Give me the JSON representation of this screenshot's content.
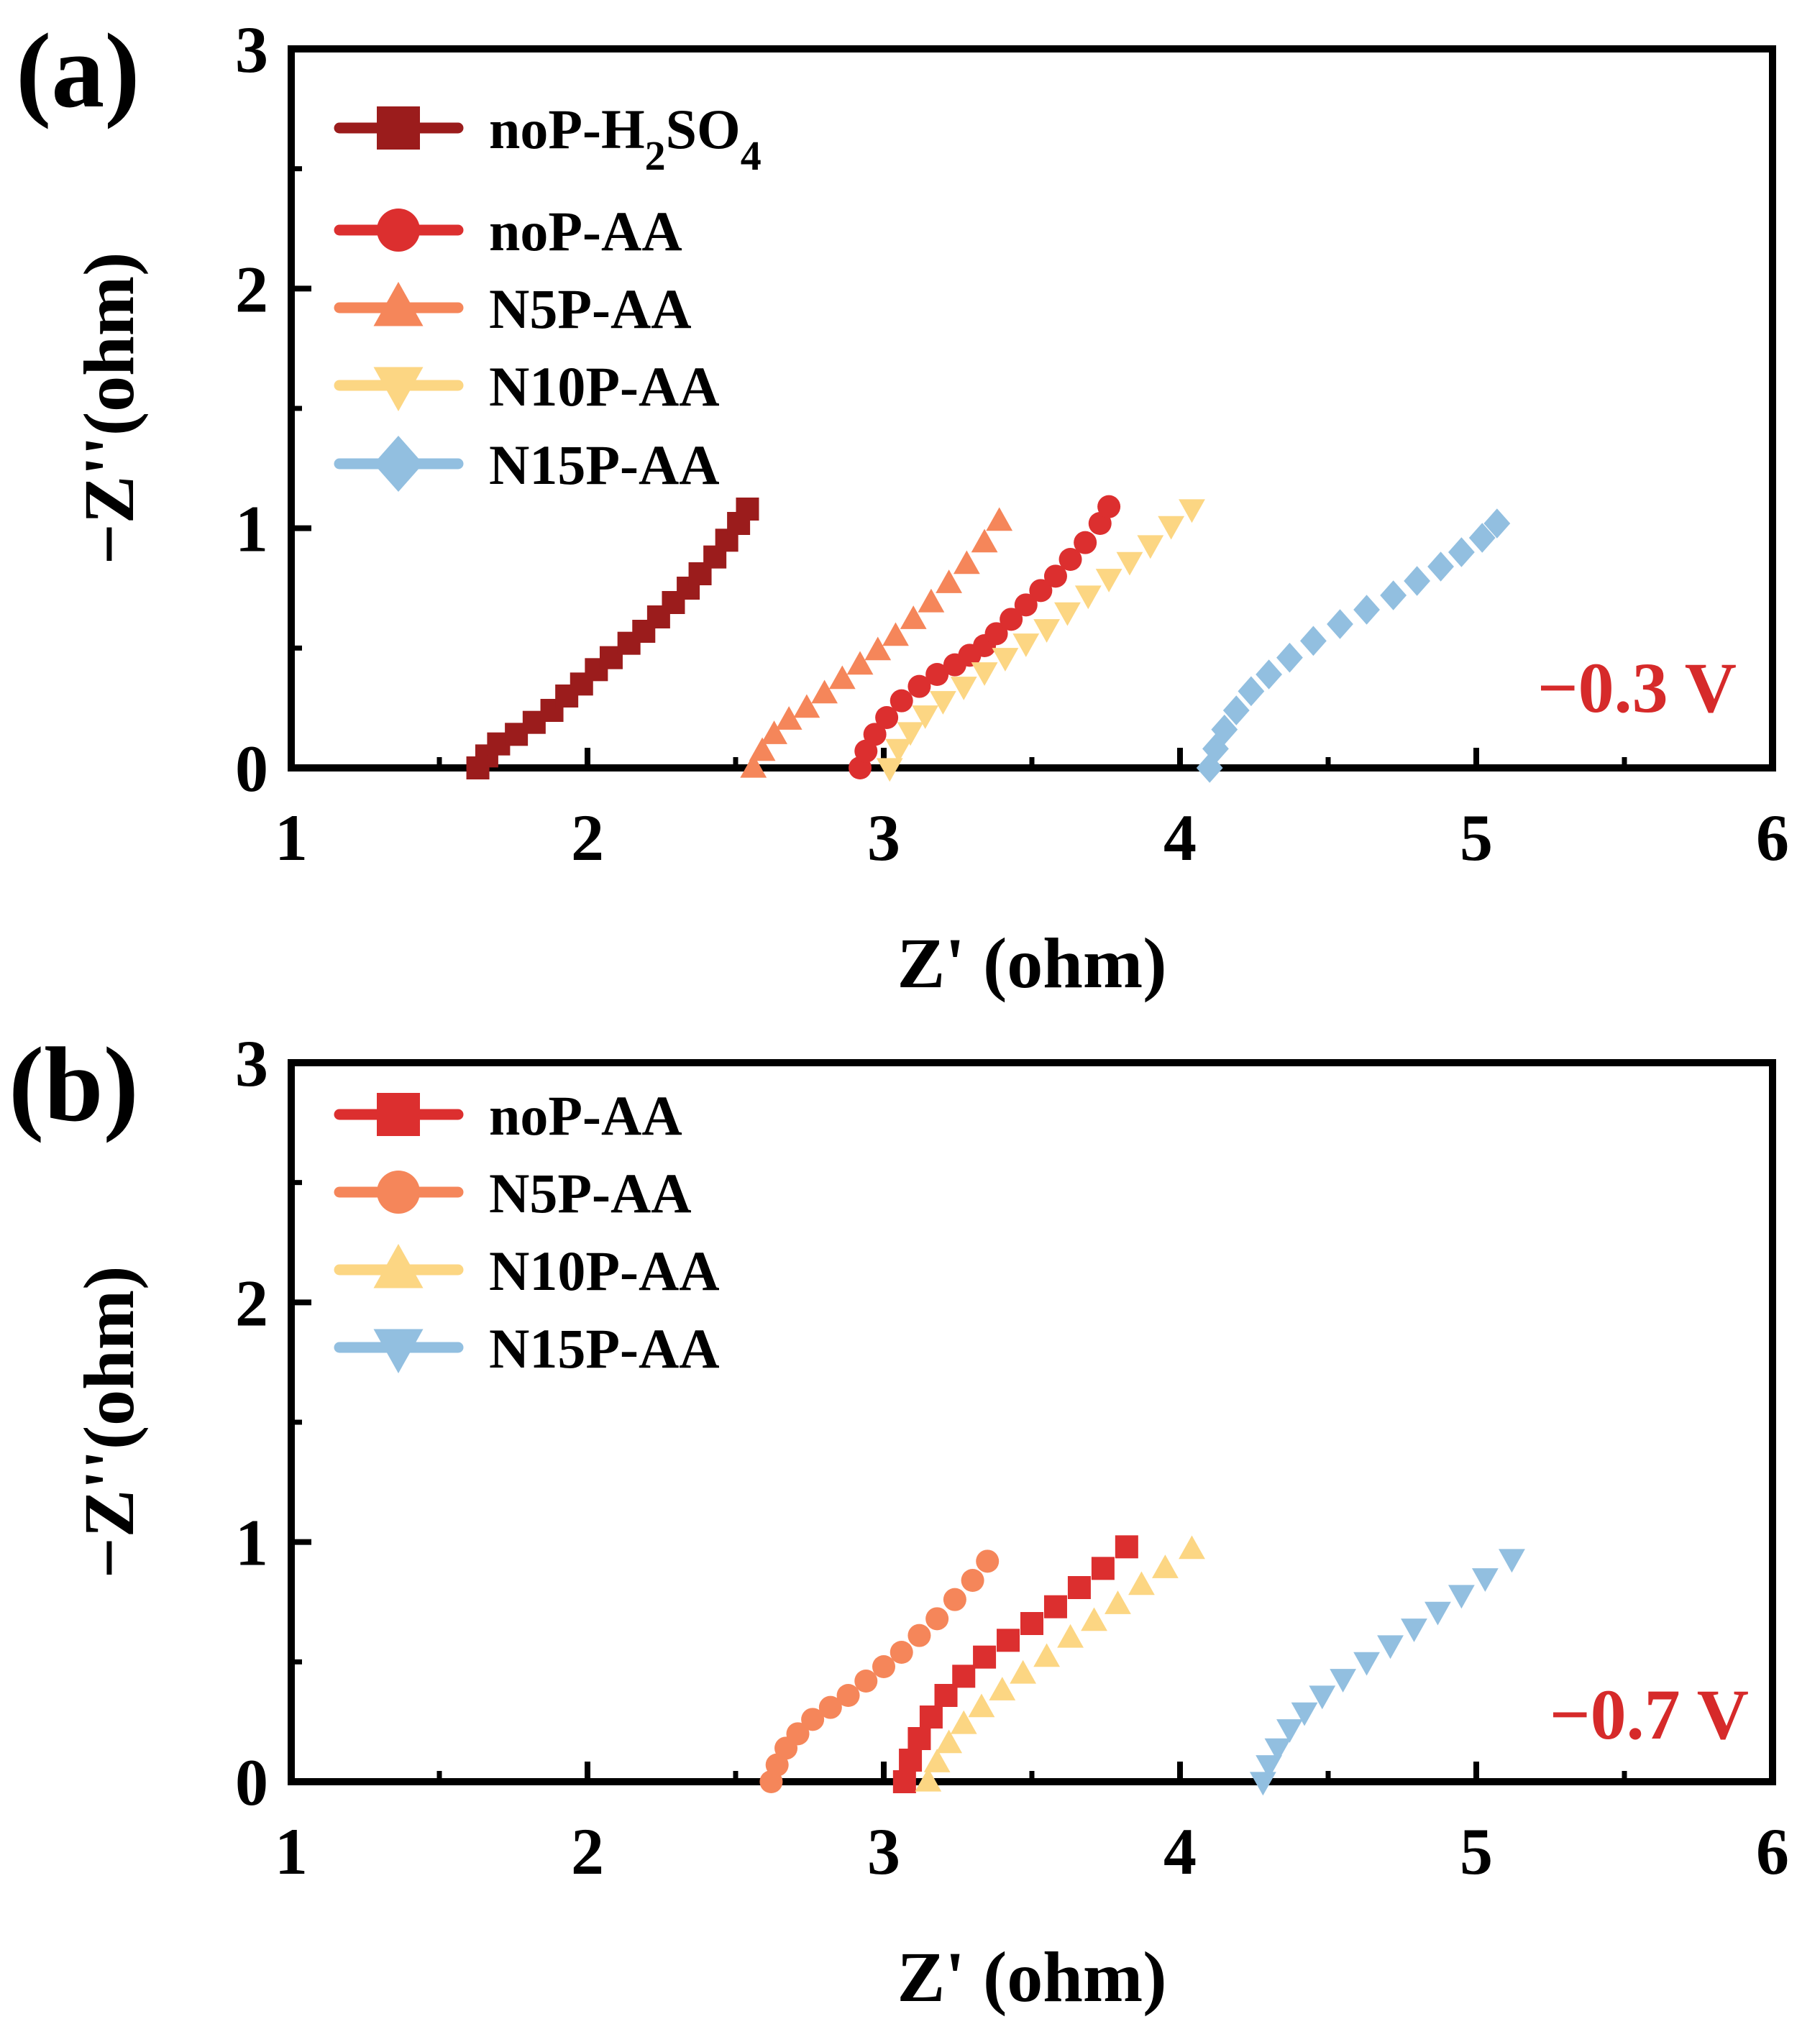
{
  "chart_data": [
    {
      "type": "scatter",
      "panel_label": "(a)",
      "xlabel": "Z' (ohm)",
      "ylabel": "−Z''(ohm)",
      "xlim": [
        1,
        6
      ],
      "ylim": [
        0,
        3
      ],
      "xticks": [
        "1",
        "2",
        "3",
        "4",
        "5",
        "6"
      ],
      "yticks": [
        "0",
        "1",
        "2",
        "3"
      ],
      "grid": false,
      "legend_position": "top-left",
      "annotation": {
        "text": "−0.3 V",
        "color": "#d62a2a"
      },
      "series": [
        {
          "name": "noP-H2SO4",
          "legend_main": "noP-H",
          "legend_sub1": "2",
          "legend_mid": "SO",
          "legend_sub2": "4",
          "color": "#9b1c1c",
          "marker": "square",
          "x": [
            1.63,
            1.66,
            1.7,
            1.76,
            1.82,
            1.88,
            1.93,
            1.98,
            2.03,
            2.08,
            2.14,
            2.19,
            2.24,
            2.29,
            2.34,
            2.38,
            2.43,
            2.47,
            2.51,
            2.54
          ],
          "y": [
            0.0,
            0.05,
            0.1,
            0.14,
            0.19,
            0.24,
            0.3,
            0.35,
            0.41,
            0.46,
            0.52,
            0.57,
            0.63,
            0.69,
            0.75,
            0.81,
            0.88,
            0.95,
            1.02,
            1.08
          ]
        },
        {
          "name": "noP-AA",
          "color": "#dc2f2f",
          "marker": "circle",
          "x": [
            2.92,
            2.94,
            2.97,
            3.01,
            3.06,
            3.12,
            3.18,
            3.24,
            3.29,
            3.34,
            3.38,
            3.43,
            3.48,
            3.53,
            3.58,
            3.63,
            3.68,
            3.73,
            3.76
          ],
          "y": [
            0.0,
            0.07,
            0.14,
            0.21,
            0.28,
            0.34,
            0.39,
            0.43,
            0.47,
            0.51,
            0.56,
            0.62,
            0.68,
            0.74,
            0.8,
            0.87,
            0.94,
            1.02,
            1.09
          ]
        },
        {
          "name": "N5P-AA",
          "color": "#f5865a",
          "marker": "triangle-up",
          "x": [
            2.56,
            2.59,
            2.63,
            2.68,
            2.74,
            2.8,
            2.86,
            2.92,
            2.98,
            3.04,
            3.1,
            3.16,
            3.22,
            3.28,
            3.34,
            3.39
          ],
          "y": [
            0.0,
            0.07,
            0.14,
            0.2,
            0.25,
            0.31,
            0.37,
            0.43,
            0.49,
            0.55,
            0.62,
            0.69,
            0.77,
            0.85,
            0.94,
            1.03
          ]
        },
        {
          "name": "N10P-AA",
          "color": "#fcd683",
          "marker": "triangle-down",
          "x": [
            3.02,
            3.05,
            3.09,
            3.14,
            3.2,
            3.27,
            3.34,
            3.41,
            3.48,
            3.55,
            3.62,
            3.69,
            3.76,
            3.83,
            3.9,
            3.97,
            4.04
          ],
          "y": [
            0.0,
            0.08,
            0.15,
            0.22,
            0.28,
            0.34,
            0.4,
            0.46,
            0.52,
            0.58,
            0.65,
            0.72,
            0.79,
            0.86,
            0.93,
            1.01,
            1.08
          ]
        },
        {
          "name": "N15P-AA",
          "color": "#92bfe0",
          "marker": "diamond",
          "x": [
            4.1,
            4.12,
            4.15,
            4.19,
            4.24,
            4.3,
            4.37,
            4.45,
            4.54,
            4.63,
            4.72,
            4.8,
            4.88,
            4.95,
            5.02,
            5.07
          ],
          "y": [
            0.0,
            0.08,
            0.16,
            0.24,
            0.32,
            0.39,
            0.46,
            0.53,
            0.6,
            0.66,
            0.72,
            0.78,
            0.84,
            0.9,
            0.96,
            1.02
          ]
        }
      ]
    },
    {
      "type": "scatter",
      "panel_label": "(b)",
      "xlabel": "Z' (ohm)",
      "ylabel": "−Z''(ohm)",
      "xlim": [
        1,
        6
      ],
      "ylim": [
        0,
        3
      ],
      "xticks": [
        "1",
        "2",
        "3",
        "4",
        "5",
        "6"
      ],
      "yticks": [
        "0",
        "1",
        "2",
        "3"
      ],
      "grid": false,
      "legend_position": "top-left",
      "annotation": {
        "text": "−0.7 V",
        "color": "#d62a2a"
      },
      "series": [
        {
          "name": "noP-AA",
          "color": "#dc2f2f",
          "marker": "square",
          "x": [
            3.07,
            3.09,
            3.12,
            3.16,
            3.21,
            3.27,
            3.34,
            3.42,
            3.5,
            3.58,
            3.66,
            3.74,
            3.82
          ],
          "y": [
            0.0,
            0.09,
            0.18,
            0.27,
            0.36,
            0.44,
            0.52,
            0.59,
            0.66,
            0.73,
            0.81,
            0.89,
            0.98
          ]
        },
        {
          "name": "N5P-AA",
          "color": "#f5865a",
          "marker": "circle",
          "x": [
            2.62,
            2.64,
            2.67,
            2.71,
            2.76,
            2.82,
            2.88,
            2.94,
            3.0,
            3.06,
            3.12,
            3.18,
            3.24,
            3.3,
            3.35
          ],
          "y": [
            0.0,
            0.07,
            0.14,
            0.2,
            0.26,
            0.31,
            0.36,
            0.42,
            0.48,
            0.54,
            0.61,
            0.68,
            0.76,
            0.84,
            0.92
          ]
        },
        {
          "name": "N10P-AA",
          "color": "#fcd683",
          "marker": "triangle-up",
          "x": [
            3.15,
            3.18,
            3.22,
            3.27,
            3.33,
            3.4,
            3.47,
            3.55,
            3.63,
            3.71,
            3.79,
            3.87,
            3.95,
            4.04
          ],
          "y": [
            0.0,
            0.08,
            0.16,
            0.24,
            0.31,
            0.38,
            0.45,
            0.52,
            0.6,
            0.67,
            0.74,
            0.82,
            0.89,
            0.97
          ]
        },
        {
          "name": "N15P-AA",
          "color": "#92bfe0",
          "marker": "triangle-down",
          "x": [
            4.28,
            4.3,
            4.33,
            4.37,
            4.42,
            4.48,
            4.55,
            4.63,
            4.71,
            4.79,
            4.87,
            4.95,
            5.03,
            5.12
          ],
          "y": [
            0.0,
            0.07,
            0.14,
            0.22,
            0.29,
            0.36,
            0.43,
            0.5,
            0.57,
            0.64,
            0.71,
            0.78,
            0.85,
            0.93
          ]
        }
      ]
    }
  ]
}
